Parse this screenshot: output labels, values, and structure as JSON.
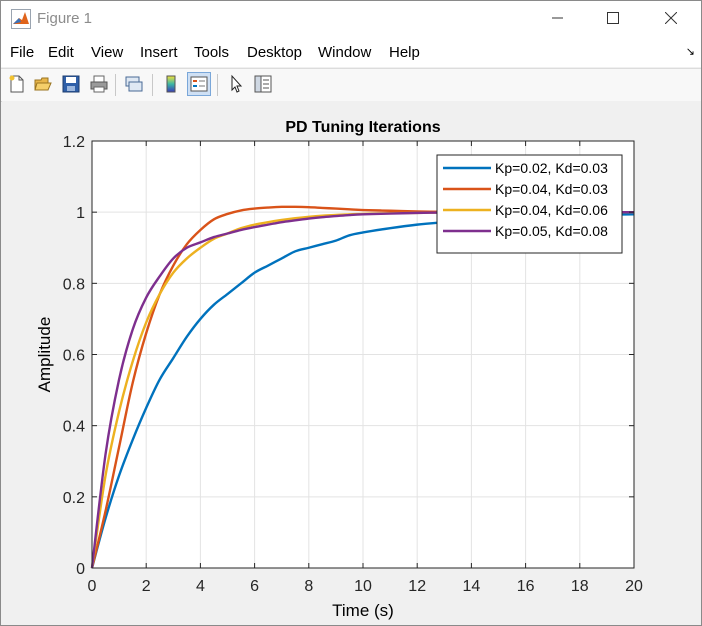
{
  "window": {
    "title": "Figure 1",
    "controls": [
      "minimize",
      "maximize",
      "close"
    ]
  },
  "menu": {
    "items": [
      "File",
      "Edit",
      "View",
      "Insert",
      "Tools",
      "Desktop",
      "Window",
      "Help"
    ]
  },
  "toolbar": {
    "buttons": [
      {
        "name": "new-figure-icon"
      },
      {
        "name": "open-file-icon"
      },
      {
        "name": "save-icon"
      },
      {
        "name": "print-icon"
      },
      {
        "name": "link-plot-icon"
      },
      {
        "name": "colorbar-icon"
      },
      {
        "name": "legend-icon",
        "pressed": true
      },
      {
        "name": "edit-plot-icon"
      },
      {
        "name": "property-inspector-icon"
      }
    ]
  },
  "chart_data": {
    "type": "line",
    "title": "PD Tuning Iterations",
    "xlabel": "Time (s)",
    "ylabel": "Amplitude",
    "xlim": [
      0,
      20
    ],
    "ylim": [
      0,
      1.2
    ],
    "xticks": [
      "0",
      "2",
      "4",
      "6",
      "8",
      "10",
      "12",
      "14",
      "16",
      "18",
      "20"
    ],
    "yticks": [
      "0",
      "0.2",
      "0.4",
      "0.6",
      "0.8",
      "1",
      "1.2"
    ],
    "grid": true,
    "legend_position": "top-right",
    "x": [
      0,
      0.5,
      1,
      1.5,
      2,
      2.5,
      3,
      3.5,
      4,
      4.5,
      5,
      5.5,
      6,
      6.5,
      7,
      7.5,
      8,
      8.5,
      9,
      9.5,
      10,
      11,
      12,
      13,
      14,
      15,
      16,
      17,
      18,
      19,
      20
    ],
    "series": [
      {
        "name": "Kp=0.02, Kd=0.03",
        "color": "#0072BD",
        "values": [
          0,
          0.14,
          0.26,
          0.36,
          0.45,
          0.53,
          0.59,
          0.65,
          0.7,
          0.74,
          0.77,
          0.8,
          0.83,
          0.85,
          0.87,
          0.89,
          0.9,
          0.91,
          0.92,
          0.935,
          0.943,
          0.955,
          0.965,
          0.972,
          0.978,
          0.983,
          0.986,
          0.989,
          0.991,
          0.993,
          0.994
        ]
      },
      {
        "name": "Kp=0.04, Kd=0.03",
        "color": "#D95319",
        "values": [
          0,
          0.16,
          0.34,
          0.52,
          0.66,
          0.77,
          0.85,
          0.91,
          0.95,
          0.98,
          0.995,
          1.005,
          1.01,
          1.013,
          1.015,
          1.015,
          1.014,
          1.012,
          1.01,
          1.008,
          1.006,
          1.004,
          1.002,
          1.001,
          1.0,
          1.0,
          1.0,
          1.0,
          1.0,
          1.0,
          1.0
        ]
      },
      {
        "name": "Kp=0.04, Kd=0.06",
        "color": "#EDB120",
        "values": [
          0,
          0.26,
          0.44,
          0.58,
          0.69,
          0.77,
          0.83,
          0.87,
          0.9,
          0.925,
          0.94,
          0.955,
          0.965,
          0.972,
          0.978,
          0.983,
          0.987,
          0.99,
          0.992,
          0.994,
          0.995,
          0.997,
          0.998,
          0.999,
          0.999,
          1.0,
          1.0,
          1.0,
          1.0,
          1.0,
          1.0
        ]
      },
      {
        "name": "Kp=0.05, Kd=0.08",
        "color": "#7E2F8E",
        "values": [
          0,
          0.32,
          0.53,
          0.67,
          0.76,
          0.82,
          0.87,
          0.9,
          0.915,
          0.93,
          0.94,
          0.95,
          0.958,
          0.965,
          0.972,
          0.977,
          0.982,
          0.986,
          0.989,
          0.992,
          0.994,
          0.996,
          0.998,
          0.999,
          0.999,
          1.0,
          1.0,
          1.0,
          1.0,
          1.0,
          1.0
        ]
      }
    ]
  }
}
